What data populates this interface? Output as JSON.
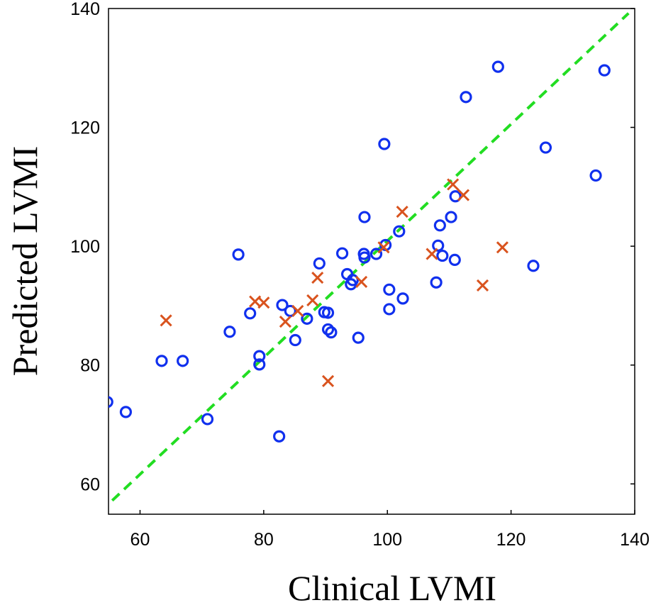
{
  "chart_data": {
    "type": "scatter",
    "title": "",
    "xlabel": "Clinical LVMI",
    "ylabel": "Predicted LVMI",
    "xlim": [
      54.9,
      140
    ],
    "ylim": [
      54.9,
      140
    ],
    "xticks": [
      60,
      80,
      100,
      120,
      140
    ],
    "yticks": [
      60,
      80,
      100,
      120,
      140
    ],
    "xtick_labels": [
      "60",
      "80",
      "100",
      "120",
      "140"
    ],
    "ytick_labels": [
      "60",
      "80",
      "100",
      "120",
      "140"
    ],
    "grid": false,
    "reference_line": {
      "type": "identity y=x",
      "style": "dashed",
      "color": "#22dd22"
    },
    "series": [
      {
        "name": "circles",
        "marker": "circle",
        "color": "#1030ee",
        "points": [
          [
            54.7,
            73.8
          ],
          [
            57.7,
            72.1
          ],
          [
            63.5,
            80.7
          ],
          [
            66.9,
            80.7
          ],
          [
            70.9,
            70.9
          ],
          [
            74.5,
            85.6
          ],
          [
            75.9,
            98.6
          ],
          [
            77.8,
            88.7
          ],
          [
            79.3,
            81.5
          ],
          [
            79.3,
            80.1
          ],
          [
            82.5,
            68.0
          ],
          [
            83.0,
            90.1
          ],
          [
            84.3,
            89.1
          ],
          [
            85.1,
            84.2
          ],
          [
            87.0,
            87.8
          ],
          [
            89.0,
            97.1
          ],
          [
            89.8,
            88.9
          ],
          [
            90.4,
            88.8
          ],
          [
            90.4,
            86.0
          ],
          [
            90.9,
            85.5
          ],
          [
            92.7,
            98.8
          ],
          [
            93.5,
            95.3
          ],
          [
            94.1,
            93.6
          ],
          [
            94.4,
            94.3
          ],
          [
            95.3,
            84.6
          ],
          [
            96.2,
            98.7
          ],
          [
            96.3,
            98.1
          ],
          [
            96.3,
            104.9
          ],
          [
            98.2,
            98.7
          ],
          [
            99.5,
            117.2
          ],
          [
            99.7,
            100.2
          ],
          [
            100.3,
            92.7
          ],
          [
            100.3,
            89.4
          ],
          [
            101.9,
            102.5
          ],
          [
            102.5,
            91.2
          ],
          [
            107.9,
            93.9
          ],
          [
            108.2,
            100.1
          ],
          [
            108.5,
            103.5
          ],
          [
            108.9,
            98.4
          ],
          [
            110.3,
            104.9
          ],
          [
            110.9,
            97.7
          ],
          [
            111.0,
            108.4
          ],
          [
            112.7,
            125.1
          ],
          [
            117.9,
            130.2
          ],
          [
            123.6,
            96.7
          ],
          [
            125.6,
            116.6
          ],
          [
            133.7,
            111.9
          ],
          [
            135.1,
            129.6
          ]
        ]
      },
      {
        "name": "crosses",
        "marker": "x",
        "color": "#d9531e",
        "points": [
          [
            64.2,
            87.5
          ],
          [
            78.6,
            90.7
          ],
          [
            80.0,
            90.5
          ],
          [
            83.5,
            87.3
          ],
          [
            85.5,
            89.1
          ],
          [
            87.9,
            90.9
          ],
          [
            88.7,
            94.7
          ],
          [
            90.4,
            77.3
          ],
          [
            95.8,
            94.0
          ],
          [
            99.4,
            99.8
          ],
          [
            102.4,
            105.8
          ],
          [
            107.2,
            98.7
          ],
          [
            110.6,
            110.4
          ],
          [
            112.3,
            108.6
          ],
          [
            115.4,
            93.4
          ],
          [
            118.6,
            99.8
          ]
        ]
      }
    ]
  }
}
